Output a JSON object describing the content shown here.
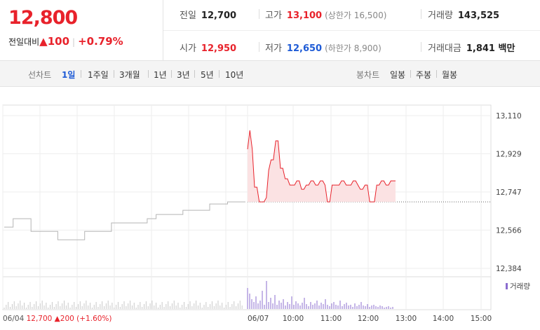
{
  "header": {
    "price": "12,800",
    "change_label": "전일대비",
    "change_arrow": "▲",
    "change_value": "100",
    "change_pct": "+0.79%",
    "prev_close_label": "전일",
    "prev_close": "12,700",
    "high_label": "고가",
    "high": "13,100",
    "upper_limit": "(상한가 16,500)",
    "volume_label": "거래량",
    "volume": "143,525",
    "open_label": "시가",
    "open": "12,950",
    "low_label": "저가",
    "low": "12,650",
    "lower_limit": "(하한가 8,900)",
    "amount_label": "거래대금",
    "amount": "1,841 백만"
  },
  "toolbar": {
    "line_label": "선차트",
    "periods": [
      "1일",
      "1주일",
      "3개월",
      "1년",
      "3년",
      "5년",
      "10년"
    ],
    "selected_period": "1일",
    "candle_label": "봉차트",
    "candles": [
      "일봉",
      "주봉",
      "월봉"
    ]
  },
  "footer": {
    "prev_date": "06/04",
    "prev_price": "12,700",
    "prev_arrow": "▲",
    "prev_change": "200",
    "prev_pct": "(+1.60%)"
  },
  "colors": {
    "up": "#e8222b",
    "down": "#1e5bd6",
    "prev_day_line": "#b5b5b5",
    "fill": "#fbe2e3"
  },
  "chart_data": {
    "type": "line",
    "y_ticks": [
      13110,
      12929,
      12747,
      12566,
      12384
    ],
    "y_tick_labels": [
      "13,110",
      "12,929",
      "12,747",
      "12,566",
      "12,384"
    ],
    "ylim": [
      12384,
      13110
    ],
    "x_tick_labels": [
      "06/07",
      "10:00",
      "11:00",
      "12:00",
      "13:00",
      "14:00",
      "15:00"
    ],
    "volume_label": "거래량",
    "baseline": 12700,
    "prev_day": {
      "date": "06/04",
      "values": [
        12580,
        12620,
        12620,
        12560,
        12560,
        12560,
        12520,
        12520,
        12520,
        12560,
        12560,
        12560,
        12600,
        12600,
        12600,
        12600,
        12620,
        12640,
        12640,
        12640,
        12660,
        12660,
        12660,
        12690,
        12690,
        12700,
        12700,
        12700
      ]
    },
    "today": {
      "date": "06/07",
      "values": [
        12950,
        13040,
        12950,
        12770,
        12770,
        12700,
        12700,
        12700,
        12720,
        12850,
        12900,
        12900,
        12990,
        12990,
        12860,
        12860,
        12810,
        12810,
        12780,
        12780,
        12780,
        12800,
        12800,
        12760,
        12760,
        12780,
        12780,
        12800,
        12800,
        12780,
        12780,
        12800,
        12800,
        12780,
        12700,
        12700,
        12780,
        12780,
        12780,
        12780,
        12800,
        12800,
        12780,
        12780,
        12780,
        12800,
        12800,
        12780,
        12760,
        12760,
        12780,
        12780,
        12700,
        12700,
        12700,
        12780,
        12780,
        12800,
        12800,
        12780,
        12780,
        12800,
        12800,
        12800
      ],
      "end_time": "13:00"
    }
  }
}
